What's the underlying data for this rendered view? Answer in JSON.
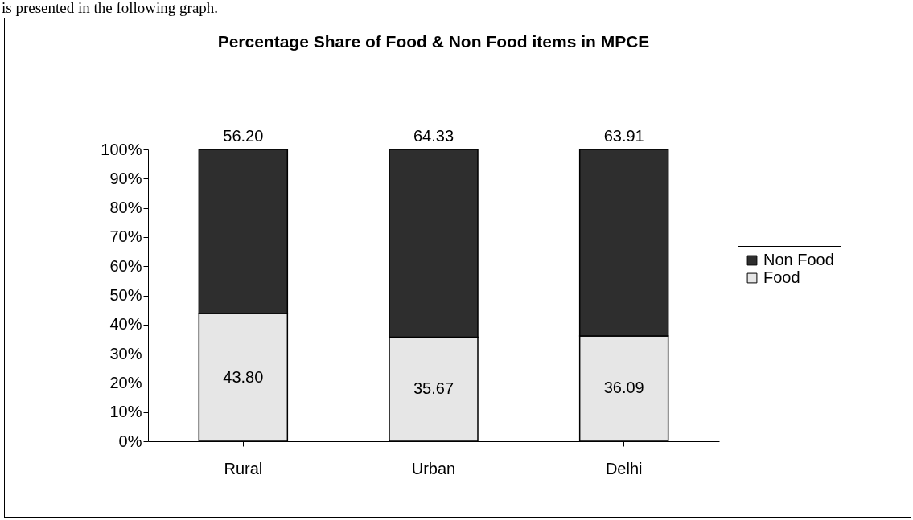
{
  "chart_data": {
    "type": "bar",
    "title": "Percentage Share of Food & Non Food items in MPCE",
    "annotations": [
      "is presented in the following graph."
    ],
    "categories": [
      "Rural",
      "Urban",
      "Delhi"
    ],
    "stacked": true,
    "series": [
      {
        "name": "Food",
        "color": "#e6e6e6",
        "values": [
          43.8,
          35.67,
          36.09
        ],
        "value_labels": [
          "43.80",
          "35.67",
          "36.09"
        ]
      },
      {
        "name": "Non Food",
        "color": "#2e2e2e",
        "values": [
          56.2,
          64.33,
          63.91
        ],
        "value_labels": [
          "56.20",
          "64.33",
          "63.91"
        ]
      }
    ],
    "ylim": [
      0,
      100
    ],
    "yticks": [
      {
        "value": 0,
        "label": "0%"
      },
      {
        "value": 10,
        "label": "10%"
      },
      {
        "value": 20,
        "label": "20%"
      },
      {
        "value": 30,
        "label": "30%"
      },
      {
        "value": 40,
        "label": "40%"
      },
      {
        "value": 50,
        "label": "50%"
      },
      {
        "value": 60,
        "label": "60%"
      },
      {
        "value": 70,
        "label": "70%"
      },
      {
        "value": 80,
        "label": "80%"
      },
      {
        "value": 90,
        "label": "90%"
      },
      {
        "value": 100,
        "label": "100%"
      }
    ],
    "legend": "right"
  }
}
